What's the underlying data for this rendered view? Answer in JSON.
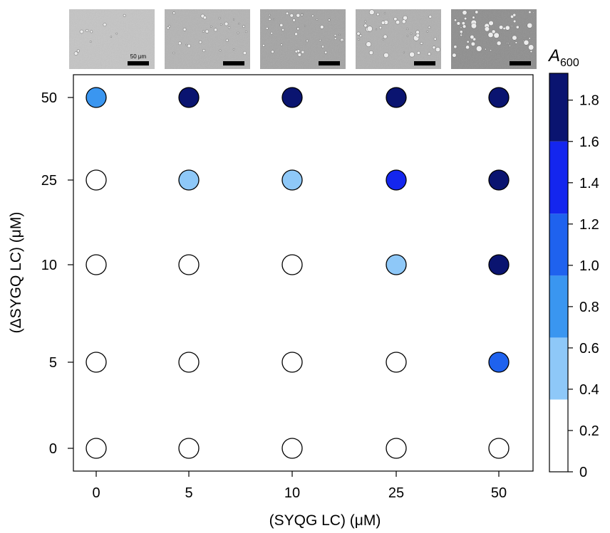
{
  "chart_data": {
    "type": "scatter",
    "title": "",
    "xlabel": "(SYQG LC) (μM)",
    "ylabel": "(ΔSYGQ LC) (μM)",
    "x_categories": [
      "0",
      "5",
      "10",
      "25",
      "50"
    ],
    "y_categories": [
      "0",
      "5",
      "10",
      "25",
      "50"
    ],
    "value_label": "A",
    "value_label_subscript": "600",
    "points": [
      {
        "x": "0",
        "y": "0",
        "A600": 0.1
      },
      {
        "x": "5",
        "y": "0",
        "A600": 0.1
      },
      {
        "x": "10",
        "y": "0",
        "A600": 0.1
      },
      {
        "x": "25",
        "y": "0",
        "A600": 0.1
      },
      {
        "x": "50",
        "y": "0",
        "A600": 0.1
      },
      {
        "x": "0",
        "y": "5",
        "A600": 0.1
      },
      {
        "x": "5",
        "y": "5",
        "A600": 0.1
      },
      {
        "x": "10",
        "y": "5",
        "A600": 0.1
      },
      {
        "x": "25",
        "y": "5",
        "A600": 0.1
      },
      {
        "x": "50",
        "y": "5",
        "A600": 1.1
      },
      {
        "x": "0",
        "y": "10",
        "A600": 0.1
      },
      {
        "x": "5",
        "y": "10",
        "A600": 0.1
      },
      {
        "x": "10",
        "y": "10",
        "A600": 0.1
      },
      {
        "x": "25",
        "y": "10",
        "A600": 0.5
      },
      {
        "x": "50",
        "y": "10",
        "A600": 1.8
      },
      {
        "x": "0",
        "y": "25",
        "A600": 0.1
      },
      {
        "x": "5",
        "y": "25",
        "A600": 0.5
      },
      {
        "x": "10",
        "y": "25",
        "A600": 0.5
      },
      {
        "x": "25",
        "y": "25",
        "A600": 1.5
      },
      {
        "x": "50",
        "y": "25",
        "A600": 1.8
      },
      {
        "x": "0",
        "y": "50",
        "A600": 0.8
      },
      {
        "x": "5",
        "y": "50",
        "A600": 1.8
      },
      {
        "x": "10",
        "y": "50",
        "A600": 1.8
      },
      {
        "x": "25",
        "y": "50",
        "A600": 1.8
      },
      {
        "x": "50",
        "y": "50",
        "A600": 1.8
      }
    ],
    "colorbar": {
      "range": [
        0,
        1.93
      ],
      "ticks": [
        0,
        0.2,
        0.4,
        0.6,
        0.8,
        1.0,
        1.2,
        1.4,
        1.6,
        1.8
      ],
      "tick_labels": [
        "0",
        "0.2",
        "0.4",
        "0.6",
        "0.8",
        "1.0",
        "1.2",
        "1.4",
        "1.6",
        "1.8"
      ],
      "bins": [
        {
          "from": 0.0,
          "to": 0.35,
          "color": "#ffffff"
        },
        {
          "from": 0.35,
          "to": 0.65,
          "color": "#8ec8f8"
        },
        {
          "from": 0.65,
          "to": 0.95,
          "color": "#3a96f0"
        },
        {
          "from": 0.95,
          "to": 1.25,
          "color": "#1f62ee"
        },
        {
          "from": 1.25,
          "to": 1.6,
          "color": "#1426ee"
        },
        {
          "from": 1.6,
          "to": 1.93,
          "color": "#0a1470"
        }
      ]
    },
    "micrograph_scale_label": "50 μm",
    "grid": false,
    "legend": "colorbar-right"
  }
}
